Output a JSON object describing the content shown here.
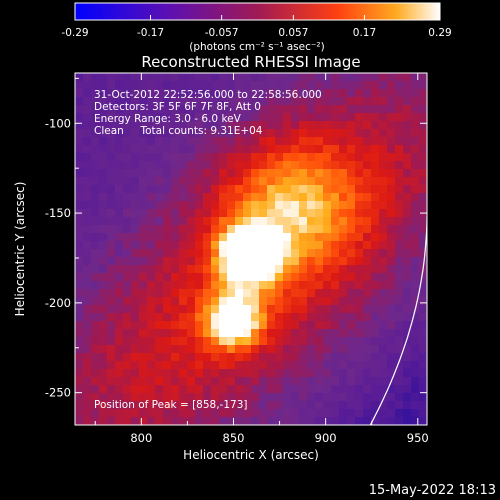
{
  "chart_data": {
    "type": "heatmap",
    "title": "Reconstructed RHESSI Image",
    "xlabel": "Heliocentric X (arcsec)",
    "ylabel": "Heliocentric Y (arcsec)",
    "xlim": [
      764,
      955
    ],
    "ylim": [
      -268,
      -72
    ],
    "x_ticks": [
      800,
      850,
      900,
      950
    ],
    "y_ticks": [
      -100,
      -150,
      -200,
      -250
    ],
    "colorbar": {
      "range": [
        -0.29,
        0.29
      ],
      "ticks": [
        "-0.29",
        "-0.17",
        "-0.057",
        "0.057",
        "0.17",
        "0.29"
      ],
      "unit_label": "(photons cm⁻² s⁻¹ asec⁻²)"
    },
    "info_lines": [
      "31-Oct-2012 22:52:56.000 to 22:58:56.000",
      "Detectors: 3F 5F 6F 7F 8F, Att 0",
      "Energy Range: 3.0 - 6.0 keV",
      "Clean     Total counts: 9.31E+04"
    ],
    "peak_label": "Position of Peak = [858,-173]",
    "peaks": [
      {
        "x": 858,
        "y": -173,
        "value": 0.29
      },
      {
        "x": 850,
        "y": -210,
        "value": 0.26
      }
    ],
    "timestamp": "15-May-2022 18:13"
  }
}
